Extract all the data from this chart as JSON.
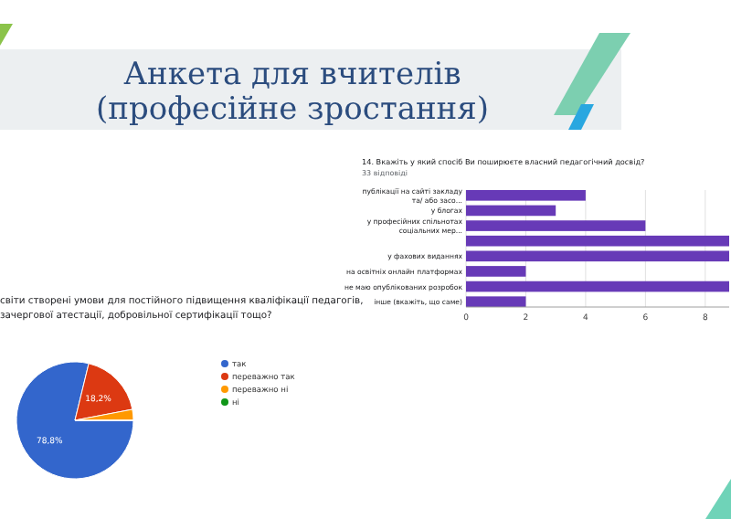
{
  "chart_data": [
    {
      "type": "bar",
      "orientation": "horizontal",
      "title": "14. Вкажіть у який спосіб Ви поширюєте власний педагогічний досвід?",
      "subtitle": "33 відповіді",
      "annotations": [
        "Анкета для вчителів",
        "(професійне зростання)"
      ],
      "categories": [
        "публікації на сайті закладу та/ або засо...",
        "у блогах",
        "у професійних спільнотах соціальних мер...",
        null,
        "у фахових виданнях",
        "на освітніх онлайн платформах",
        "не маю опублікованих розробок",
        "інше (вкажіть, що саме)"
      ],
      "values": [
        4,
        3,
        6,
        8.8,
        8.8,
        2,
        8.8,
        2
      ],
      "color": "#673ab7",
      "xlim": [
        0,
        8.8
      ],
      "xticks": [
        0,
        2,
        4,
        6,
        8
      ],
      "grid": "x"
    },
    {
      "type": "pie",
      "title": "світи створені умови для постійного підвищення кваліфікації педагогів, зачергової атестації, добровільної сертифікації тощо?",
      "categories": [
        "так",
        "переважно так",
        "переважно ні",
        "ні"
      ],
      "values": [
        78.8,
        18.2,
        3,
        0
      ],
      "colors": [
        "#3366cc",
        "#dc3912",
        "#ff9900",
        "#109618"
      ],
      "value_labels": [
        "78,8%",
        "18,2%",
        null,
        null
      ],
      "legend": "right"
    }
  ]
}
